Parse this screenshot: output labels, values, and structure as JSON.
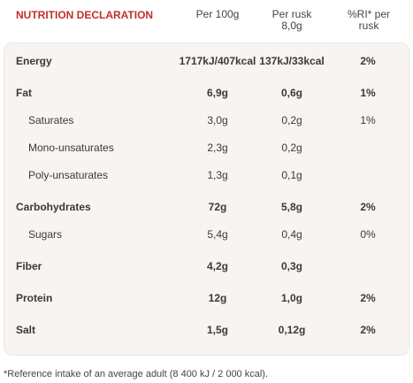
{
  "header": {
    "title": "NUTRITION DECLARATION",
    "per_100g": "Per 100g",
    "per_rusk": "Per rusk 8,0g",
    "ri": "%RI* per rusk"
  },
  "table": {
    "rows": [
      {
        "label": "Energy",
        "per_100g": "1717kJ/407kcal",
        "per_rusk": "137kJ/33kcal",
        "ri": "2%"
      },
      {
        "label": "Fat",
        "per_100g": "6,9g",
        "per_rusk": "0,6g",
        "ri": "1%"
      },
      {
        "label": "Saturates",
        "per_100g": "3,0g",
        "per_rusk": "0,2g",
        "ri": "1%",
        "sub": true
      },
      {
        "label": "Mono-unsaturates",
        "per_100g": "2,3g",
        "per_rusk": "0,2g",
        "sub": true
      },
      {
        "label": "Poly-unsaturates",
        "per_100g": "1,3g",
        "per_rusk": "0,1g",
        "sub": true
      },
      {
        "label": "Carbohydrates",
        "per_100g": "72g",
        "per_rusk": "5,8g",
        "ri": "2%"
      },
      {
        "label": "Sugars",
        "per_100g": "5,4g",
        "per_rusk": "0,4g",
        "ri": "0%",
        "sub": true
      },
      {
        "label": "Fiber",
        "per_100g": "4,2g",
        "per_rusk": "0,3g"
      },
      {
        "label": "Protein",
        "per_100g": "12g",
        "per_rusk": "1,0g",
        "ri": "2%"
      },
      {
        "label": "Salt",
        "per_100g": "1,5g",
        "per_rusk": "0,12g",
        "ri": "2%"
      }
    ]
  },
  "footnote": "*Reference intake of an average adult (8 400 kJ / 2 000 kcal)."
}
